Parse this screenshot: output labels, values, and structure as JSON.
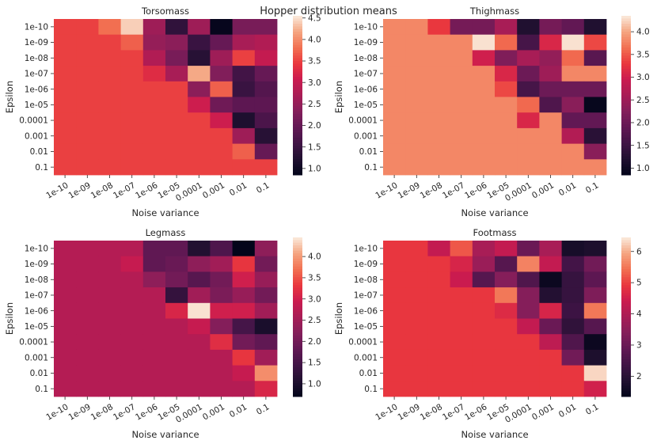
{
  "title": "Hopper distribution means",
  "chart_data": [
    {
      "type": "heatmap",
      "title": "Torsomass",
      "xlabel": "Noise variance",
      "ylabel": "Epsilon",
      "x_categories": [
        "1e-10",
        "1e-09",
        "1e-08",
        "1e-07",
        "1e-06",
        "1e-05",
        "0.0001",
        "0.001",
        "0.01",
        "0.1"
      ],
      "y_categories": [
        "1e-10",
        "1e-09",
        "1e-08",
        "1e-07",
        "1e-06",
        "1e-05",
        "0.0001",
        "0.001",
        "0.01",
        "0.1"
      ],
      "colorbar": {
        "min": 0.85,
        "max": 4.55,
        "ticks": [
          1.0,
          1.5,
          2.0,
          2.5,
          3.0,
          3.5,
          4.0,
          4.5
        ]
      },
      "values": [
        [
          3.5,
          3.5,
          3.8,
          4.4,
          2.6,
          1.4,
          2.6,
          0.9,
          2.2,
          2.2
        ],
        [
          3.5,
          3.5,
          3.5,
          3.7,
          2.5,
          2.4,
          1.5,
          2.0,
          2.7,
          2.8
        ],
        [
          3.5,
          3.5,
          3.5,
          3.5,
          2.8,
          2.2,
          1.3,
          2.6,
          3.5,
          3.0
        ],
        [
          3.5,
          3.5,
          3.5,
          3.5,
          3.3,
          2.7,
          4.2,
          2.3,
          1.6,
          2.0
        ],
        [
          3.5,
          3.5,
          3.5,
          3.5,
          3.5,
          3.5,
          2.4,
          3.7,
          1.5,
          1.8
        ],
        [
          3.5,
          3.5,
          3.5,
          3.5,
          3.5,
          3.5,
          3.1,
          2.1,
          1.9,
          1.9
        ],
        [
          3.5,
          3.5,
          3.5,
          3.5,
          3.5,
          3.5,
          3.5,
          3.1,
          1.2,
          1.7
        ],
        [
          3.5,
          3.5,
          3.5,
          3.5,
          3.5,
          3.5,
          3.5,
          3.5,
          2.6,
          1.3
        ],
        [
          3.5,
          3.5,
          3.5,
          3.5,
          3.5,
          3.5,
          3.5,
          3.5,
          3.7,
          2.0
        ],
        [
          3.5,
          3.5,
          3.5,
          3.5,
          3.5,
          3.5,
          3.5,
          3.5,
          3.5,
          3.5
        ]
      ]
    },
    {
      "type": "heatmap",
      "title": "Thighmass",
      "xlabel": "Noise variance",
      "ylabel": "Epsilon",
      "x_categories": [
        "1e-10",
        "1e-09",
        "1e-08",
        "1e-07",
        "1e-06",
        "1e-05",
        "0.0001",
        "0.001",
        "0.01",
        "0.1"
      ],
      "y_categories": [
        "1e-10",
        "1e-09",
        "1e-08",
        "1e-07",
        "1e-06",
        "1e-05",
        "0.0001",
        "0.001",
        "0.01",
        "0.1"
      ],
      "colorbar": {
        "min": 0.85,
        "max": 4.35,
        "ticks": [
          1.0,
          1.5,
          2.0,
          2.5,
          3.0,
          3.5,
          4.0
        ]
      },
      "values": [
        [
          3.8,
          3.8,
          3.3,
          2.1,
          2.1,
          2.6,
          1.2,
          2.1,
          1.9,
          1.2
        ],
        [
          3.8,
          3.8,
          3.8,
          3.8,
          4.3,
          3.6,
          1.6,
          3.1,
          4.3,
          3.4
        ],
        [
          3.8,
          3.8,
          3.8,
          3.8,
          3.0,
          2.2,
          2.6,
          2.4,
          3.6,
          1.8
        ],
        [
          3.8,
          3.8,
          3.8,
          3.8,
          3.8,
          3.1,
          2.0,
          2.5,
          3.8,
          3.8
        ],
        [
          3.8,
          3.8,
          3.8,
          3.8,
          3.8,
          3.4,
          1.6,
          2.0,
          2.0,
          2.0
        ],
        [
          3.8,
          3.8,
          3.8,
          3.8,
          3.8,
          3.8,
          3.6,
          1.7,
          2.3,
          0.9
        ],
        [
          3.8,
          3.8,
          3.8,
          3.8,
          3.8,
          3.8,
          3.1,
          3.8,
          1.9,
          1.9
        ],
        [
          3.8,
          3.8,
          3.8,
          3.8,
          3.8,
          3.8,
          3.8,
          3.8,
          2.7,
          1.3
        ],
        [
          3.8,
          3.8,
          3.8,
          3.8,
          3.8,
          3.8,
          3.8,
          3.8,
          3.8,
          2.3
        ],
        [
          3.8,
          3.8,
          3.8,
          3.8,
          3.8,
          3.8,
          3.8,
          3.8,
          3.8,
          3.8
        ]
      ]
    },
    {
      "type": "heatmap",
      "title": "Legmass",
      "xlabel": "Noise variance",
      "ylabel": "Epsilon",
      "x_categories": [
        "1e-10",
        "1e-09",
        "1e-08",
        "1e-07",
        "1e-06",
        "1e-05",
        "0.0001",
        "0.001",
        "0.01",
        "0.1"
      ],
      "y_categories": [
        "1e-10",
        "1e-09",
        "1e-08",
        "1e-07",
        "1e-06",
        "1e-05",
        "0.0001",
        "0.001",
        "0.01",
        "0.1"
      ],
      "colorbar": {
        "min": 0.7,
        "max": 4.45,
        "ticks": [
          1.0,
          1.5,
          2.0,
          2.5,
          3.0,
          3.5,
          4.0
        ]
      },
      "values": [
        [
          2.7,
          2.7,
          2.7,
          2.7,
          1.8,
          1.8,
          1.1,
          1.6,
          0.7,
          2.3
        ],
        [
          2.7,
          2.7,
          2.7,
          2.9,
          1.8,
          1.9,
          2.3,
          2.5,
          3.3,
          2.0
        ],
        [
          2.7,
          2.7,
          2.7,
          2.7,
          2.3,
          2.0,
          1.7,
          2.0,
          3.0,
          2.4
        ],
        [
          2.7,
          2.7,
          2.7,
          2.7,
          2.7,
          1.3,
          2.5,
          2.1,
          2.4,
          2.0
        ],
        [
          2.7,
          2.7,
          2.7,
          2.7,
          2.7,
          3.1,
          4.4,
          3.0,
          3.0,
          2.5
        ],
        [
          2.7,
          2.7,
          2.7,
          2.7,
          2.7,
          2.7,
          2.9,
          2.2,
          1.5,
          1.0
        ],
        [
          2.7,
          2.7,
          2.7,
          2.7,
          2.7,
          2.7,
          2.7,
          3.2,
          2.0,
          1.8
        ],
        [
          2.7,
          2.7,
          2.7,
          2.7,
          2.7,
          2.7,
          2.7,
          2.7,
          3.3,
          2.5
        ],
        [
          2.7,
          2.7,
          2.7,
          2.7,
          2.7,
          2.7,
          2.7,
          2.7,
          2.9,
          3.9
        ],
        [
          2.7,
          2.7,
          2.7,
          2.7,
          2.7,
          2.7,
          2.7,
          2.7,
          2.7,
          3.1
        ]
      ]
    },
    {
      "type": "heatmap",
      "title": "Footmass",
      "xlabel": "Noise variance",
      "ylabel": "Epsilon",
      "x_categories": [
        "1e-10",
        "1e-09",
        "1e-08",
        "1e-07",
        "1e-06",
        "1e-05",
        "0.0001",
        "0.001",
        "0.01",
        "0.1"
      ],
      "y_categories": [
        "1e-10",
        "1e-09",
        "1e-08",
        "1e-07",
        "1e-06",
        "1e-05",
        "0.0001",
        "0.001",
        "0.01",
        "0.1"
      ],
      "colorbar": {
        "min": 1.35,
        "max": 6.45,
        "ticks": [
          2,
          3,
          4,
          5,
          6
        ]
      },
      "values": [
        [
          4.9,
          4.9,
          4.3,
          5.2,
          3.9,
          4.3,
          3.0,
          3.9,
          1.7,
          1.8
        ],
        [
          4.9,
          4.9,
          4.9,
          4.6,
          3.7,
          2.7,
          5.6,
          4.3,
          2.4,
          3.1
        ],
        [
          4.9,
          4.9,
          4.9,
          4.4,
          2.7,
          3.4,
          2.6,
          1.5,
          2.2,
          2.8
        ],
        [
          4.9,
          4.9,
          4.9,
          4.9,
          4.9,
          5.5,
          3.4,
          1.9,
          2.2,
          3.3
        ],
        [
          4.9,
          4.9,
          4.9,
          4.9,
          4.9,
          4.7,
          3.4,
          4.6,
          2.3,
          5.5
        ],
        [
          4.9,
          4.9,
          4.9,
          4.9,
          4.9,
          4.9,
          4.3,
          3.0,
          2.1,
          2.7
        ],
        [
          4.9,
          4.9,
          4.9,
          4.9,
          4.9,
          4.9,
          4.9,
          4.2,
          2.6,
          1.5
        ],
        [
          4.9,
          4.9,
          4.9,
          4.9,
          4.9,
          4.9,
          4.9,
          4.9,
          3.1,
          1.8
        ],
        [
          4.9,
          4.9,
          4.9,
          4.9,
          4.9,
          4.9,
          4.9,
          4.9,
          4.9,
          6.3
        ],
        [
          4.9,
          4.9,
          4.9,
          4.9,
          4.9,
          4.9,
          4.9,
          4.9,
          4.9,
          4.5
        ]
      ]
    }
  ]
}
